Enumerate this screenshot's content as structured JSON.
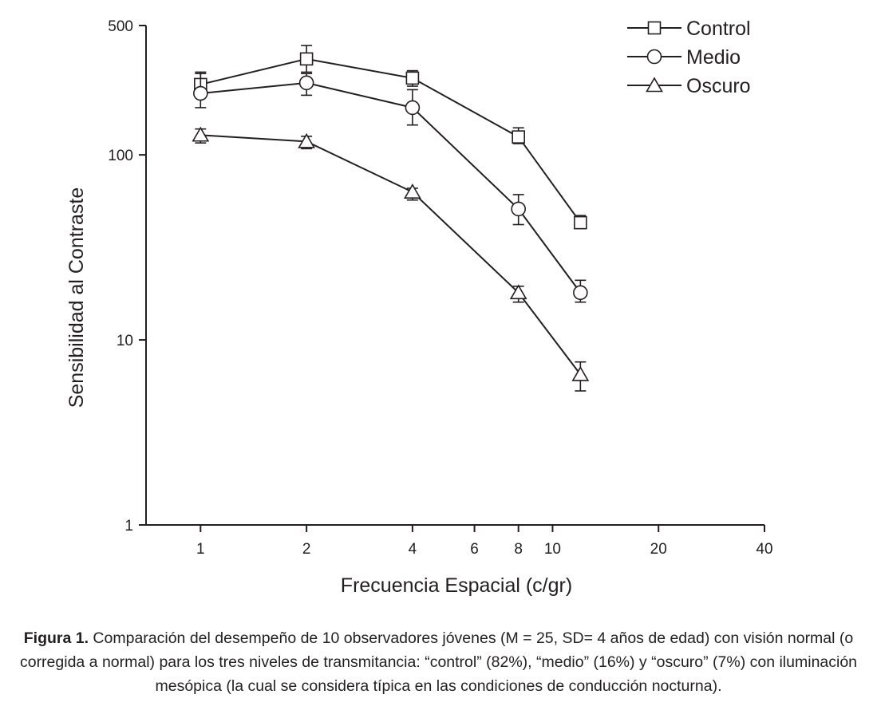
{
  "chart_data": {
    "type": "line",
    "xlabel": "Frecuencia Espacial (c/gr)",
    "ylabel": "Sensibilidad al Contraste",
    "xscale": "log",
    "yscale": "log",
    "xlim": [
      0.7,
      40
    ],
    "ylim": [
      1,
      500
    ],
    "x_ticks": [
      1,
      2,
      4,
      6,
      8,
      10,
      20,
      40
    ],
    "x_tick_labels": [
      "1",
      "2",
      "4",
      "6",
      "8",
      "10",
      "20",
      "40"
    ],
    "y_ticks": [
      1,
      10,
      100,
      500
    ],
    "y_tick_labels": [
      "1",
      "10",
      "100",
      "500"
    ],
    "legend_position": "top-right",
    "series": [
      {
        "name": "Control",
        "marker": "square",
        "x": [
          1,
          2,
          4,
          8,
          12
        ],
        "y": [
          240,
          330,
          260,
          125,
          43
        ],
        "err_low": [
          210,
          280,
          235,
          115,
          40
        ],
        "err_high": [
          280,
          390,
          285,
          140,
          47
        ]
      },
      {
        "name": "Medio",
        "marker": "circle",
        "x": [
          1,
          2,
          4,
          8,
          12
        ],
        "y": [
          215,
          245,
          180,
          51,
          18
        ],
        "err_low": [
          180,
          210,
          145,
          42,
          16
        ],
        "err_high": [
          275,
          275,
          225,
          61,
          21
        ]
      },
      {
        "name": "Oscuro",
        "marker": "triangle",
        "x": [
          1,
          2,
          4,
          8,
          12
        ],
        "y": [
          128,
          118,
          63,
          18,
          6.5
        ],
        "err_low": [
          116,
          108,
          57,
          16,
          5.3
        ],
        "err_high": [
          138,
          126,
          66,
          19.5,
          7.6
        ]
      }
    ]
  },
  "caption": {
    "label": "Figura 1.",
    "text": " Comparación del desempeño de 10 observadores jóvenes (M = 25, SD= 4 años de edad) con visión normal (o corregida a normal) para los tres niveles de transmitancia: “control” (82%), “medio” (16%) y “oscuro” (7%) con iluminación mesópica (la cual se considera típica en las condiciones de conducción nocturna)."
  }
}
